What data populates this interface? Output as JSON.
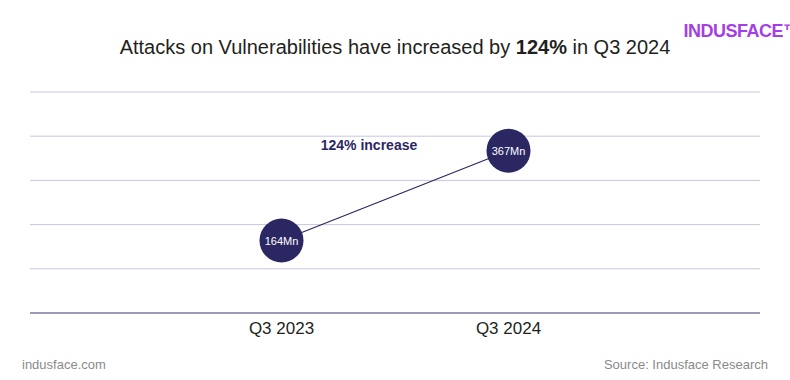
{
  "chart_data": {
    "type": "line",
    "title": "Attacks on Vulnerabilities have increased by 124% in Q3 2024",
    "logo": "INDUSFACE™",
    "annotation": "124% increase",
    "footer": "indusface.com",
    "source": "Source: Indusface Research",
    "categories": [
      "Q3 2023",
      "Q3 2024"
    ],
    "values": [
      164,
      367
    ],
    "value_labels": [
      "164Mn",
      "367Mn"
    ],
    "data_labels": true,
    "color": "#2b2763",
    "ylim": [
      0,
      500
    ],
    "yticks": [
      0,
      100,
      200,
      300,
      400,
      500
    ],
    "grid": true,
    "tick_labels": "x",
    "marker": "circle",
    "line_style": "solid"
  }
}
